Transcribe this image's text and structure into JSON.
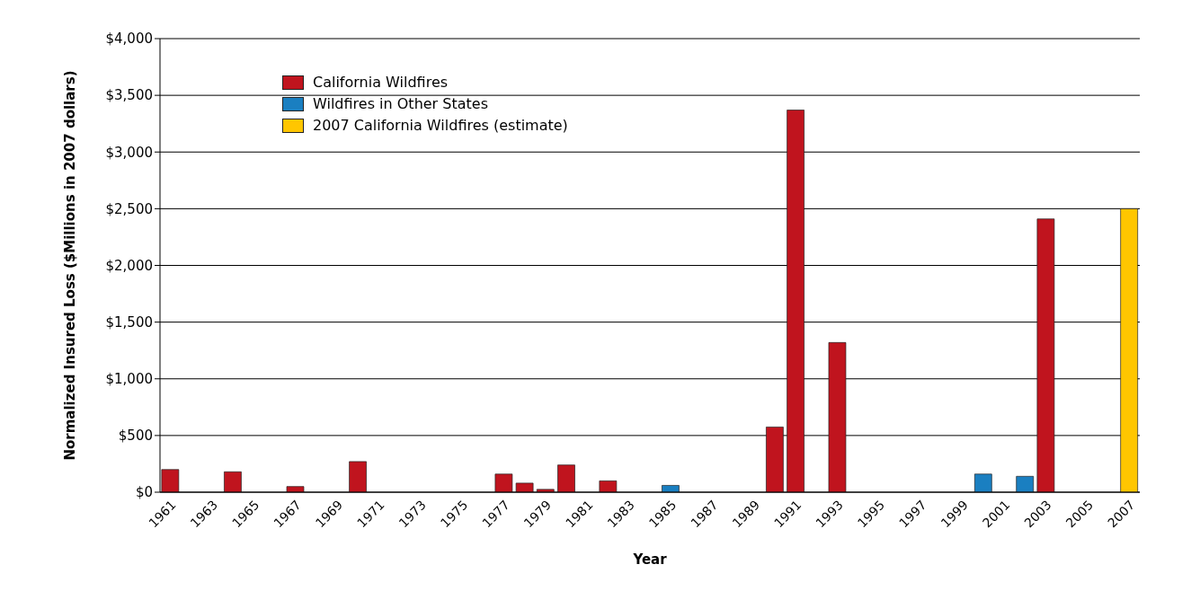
{
  "chart_data": {
    "type": "bar",
    "xlabel": "Year",
    "ylabel": "Normalized Insured Loss ($Millions in 2007 dollars)",
    "categories": [
      "1961",
      null,
      "1963",
      null,
      "1965",
      null,
      "1967",
      null,
      "1969",
      null,
      "1971",
      null,
      "1973",
      null,
      "1975",
      null,
      "1977",
      null,
      "1979",
      null,
      "1981",
      null,
      "1983",
      null,
      "1985",
      null,
      "1987",
      null,
      "1989",
      null,
      "1991",
      null,
      "1993",
      null,
      "1995",
      null,
      "1997",
      null,
      "1999",
      null,
      "2001",
      null,
      "2003",
      null,
      "2005",
      null,
      "2007"
    ],
    "series": [
      {
        "name": "California Wildfires",
        "color": "#c0141e",
        "values": [
          200,
          null,
          null,
          180,
          null,
          null,
          50,
          null,
          null,
          270,
          null,
          null,
          null,
          null,
          null,
          null,
          160,
          80,
          25,
          240,
          null,
          100,
          null,
          null,
          null,
          null,
          null,
          null,
          null,
          575,
          3370,
          null,
          1320,
          null,
          null,
          null,
          null,
          null,
          null,
          null,
          null,
          null,
          2410,
          null,
          null,
          null,
          null
        ]
      },
      {
        "name": "Wildfires in Other States",
        "color": "#1a7fc1",
        "values": [
          null,
          null,
          null,
          null,
          null,
          null,
          null,
          null,
          null,
          null,
          null,
          null,
          null,
          null,
          null,
          null,
          null,
          null,
          null,
          null,
          null,
          null,
          null,
          null,
          60,
          null,
          null,
          null,
          null,
          null,
          null,
          null,
          null,
          null,
          null,
          null,
          null,
          null,
          null,
          160,
          null,
          140,
          null,
          null,
          null,
          null,
          null
        ]
      },
      {
        "name": "2007 California Wildfires (estimate)",
        "color": "#ffc600",
        "values": [
          null,
          null,
          null,
          null,
          null,
          null,
          null,
          null,
          null,
          null,
          null,
          null,
          null,
          null,
          null,
          null,
          null,
          null,
          null,
          null,
          null,
          null,
          null,
          null,
          null,
          null,
          null,
          null,
          null,
          null,
          null,
          null,
          null,
          null,
          null,
          null,
          null,
          null,
          null,
          null,
          null,
          null,
          null,
          null,
          null,
          null,
          2500
        ]
      }
    ],
    "stacked": true,
    "ylim": [
      0,
      4000
    ],
    "yticks": [
      {
        "value": 0,
        "label": "$0"
      },
      {
        "value": 500,
        "label": "$500"
      },
      {
        "value": 1000,
        "label": "$1,000"
      },
      {
        "value": 1500,
        "label": "$1,500"
      },
      {
        "value": 2000,
        "label": "$2,000"
      },
      {
        "value": 2500,
        "label": "$2,500"
      },
      {
        "value": 3000,
        "label": "$3,000"
      },
      {
        "value": 3500,
        "label": "$3,500"
      },
      {
        "value": 4000,
        "label": "$4,000"
      }
    ],
    "grid": "y",
    "legend": "top left"
  }
}
